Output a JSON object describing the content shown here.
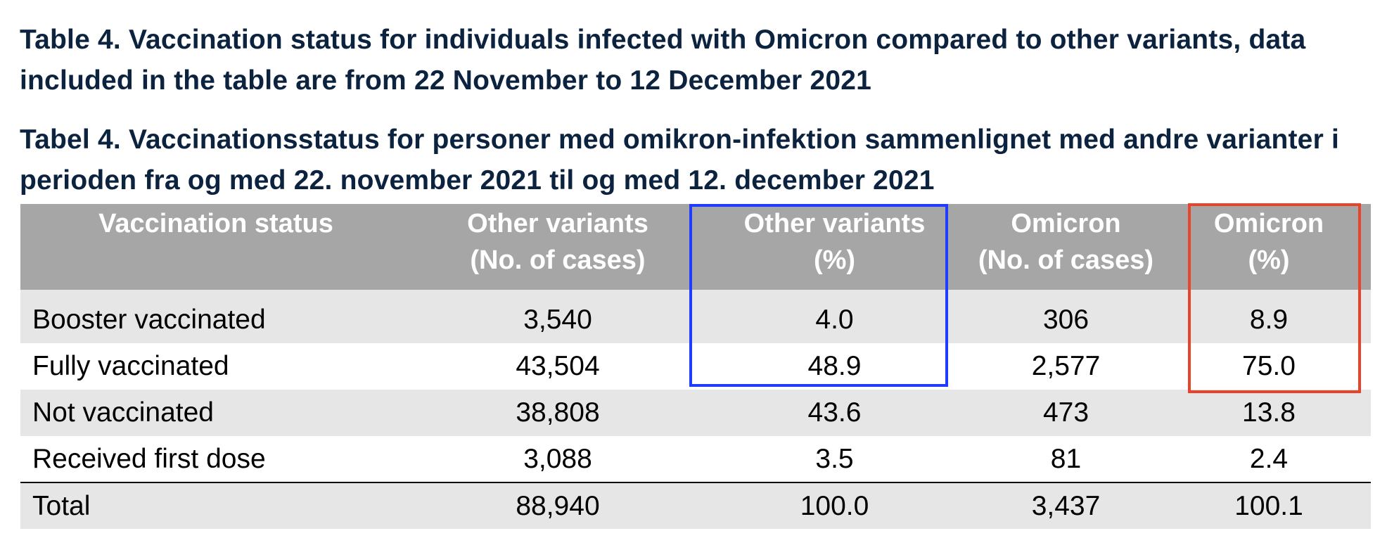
{
  "captions": {
    "english": "Table 4. Vaccination status for individuals infected with Omicron compared to other variants, data included in the table are from 22 November to 12 December 2021",
    "danish": "Tabel 4. Vaccinationsstatus for personer med omikron-infektion sammenlignet med andre varianter i perioden fra og med 22. november 2021 til og med 12. december 2021"
  },
  "table": {
    "headers": {
      "status": "Vaccination status",
      "other_cases_line1": "Other variants",
      "other_cases_line2": "(No. of cases)",
      "other_pct_line1": "Other variants",
      "other_pct_line2": "(%)",
      "omicron_cases_line1": "Omicron",
      "omicron_cases_line2": "(No. of cases)",
      "omicron_pct_line1": "Omicron",
      "omicron_pct_line2": "(%)"
    },
    "rows": [
      {
        "status": "Booster vaccinated",
        "other_cases": "3,540",
        "other_pct": "4.0",
        "omicron_cases": "306",
        "omicron_pct": "8.9"
      },
      {
        "status": "Fully vaccinated",
        "other_cases": "43,504",
        "other_pct": "48.9",
        "omicron_cases": "2,577",
        "omicron_pct": "75.0"
      },
      {
        "status": "Not vaccinated",
        "other_cases": "38,808",
        "other_pct": "43.6",
        "omicron_cases": "473",
        "omicron_pct": "13.8"
      },
      {
        "status": "Received first dose",
        "other_cases": "3,088",
        "other_pct": "3.5",
        "omicron_cases": "81",
        "omicron_pct": "2.4"
      }
    ],
    "total": {
      "status": "Total",
      "other_cases": "88,940",
      "other_pct": "100.0",
      "omicron_cases": "3,437",
      "omicron_pct": "100.1"
    }
  },
  "colors": {
    "caption_text": "#0c2340",
    "header_bg": "#a6a6a6",
    "row_shade": "#e6e6e6",
    "highlight_blue": "#1f3cff",
    "highlight_red": "#e8442b"
  }
}
